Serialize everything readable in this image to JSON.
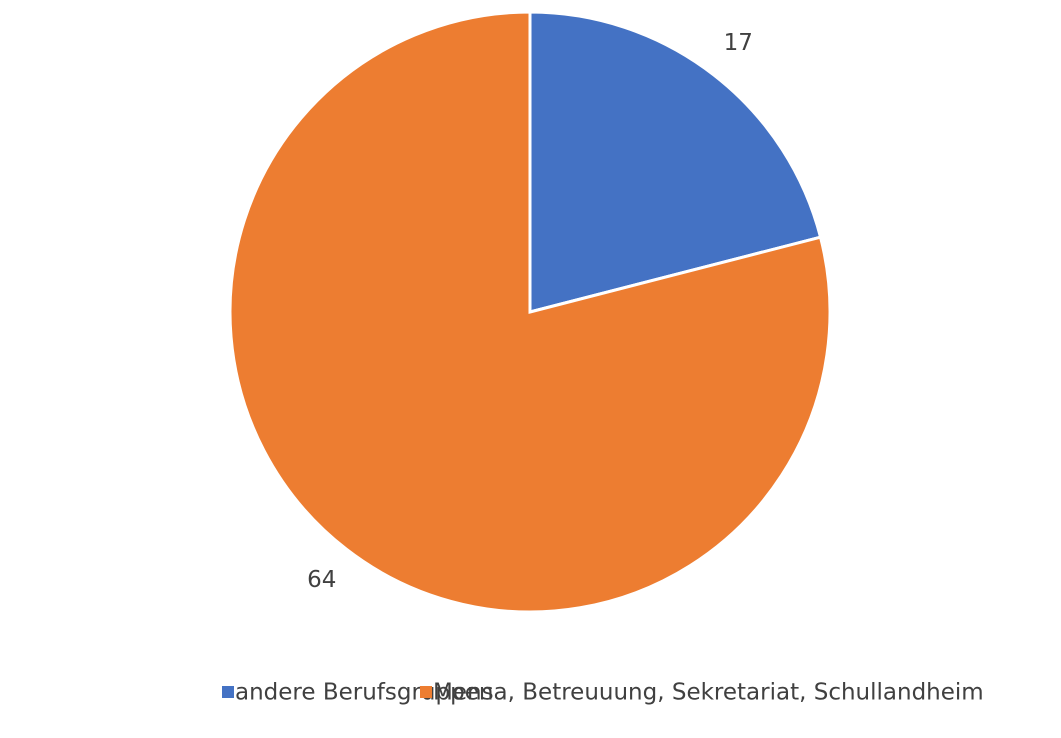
{
  "chart_data": {
    "type": "pie",
    "categories": [
      "andere Berufsgruppen",
      "Mensa, Betreuuung, Sekretariat, Schullandheim"
    ],
    "values": [
      17,
      64
    ],
    "colors": [
      "#4472c4",
      "#ed7d31"
    ],
    "legend": "bottom"
  }
}
